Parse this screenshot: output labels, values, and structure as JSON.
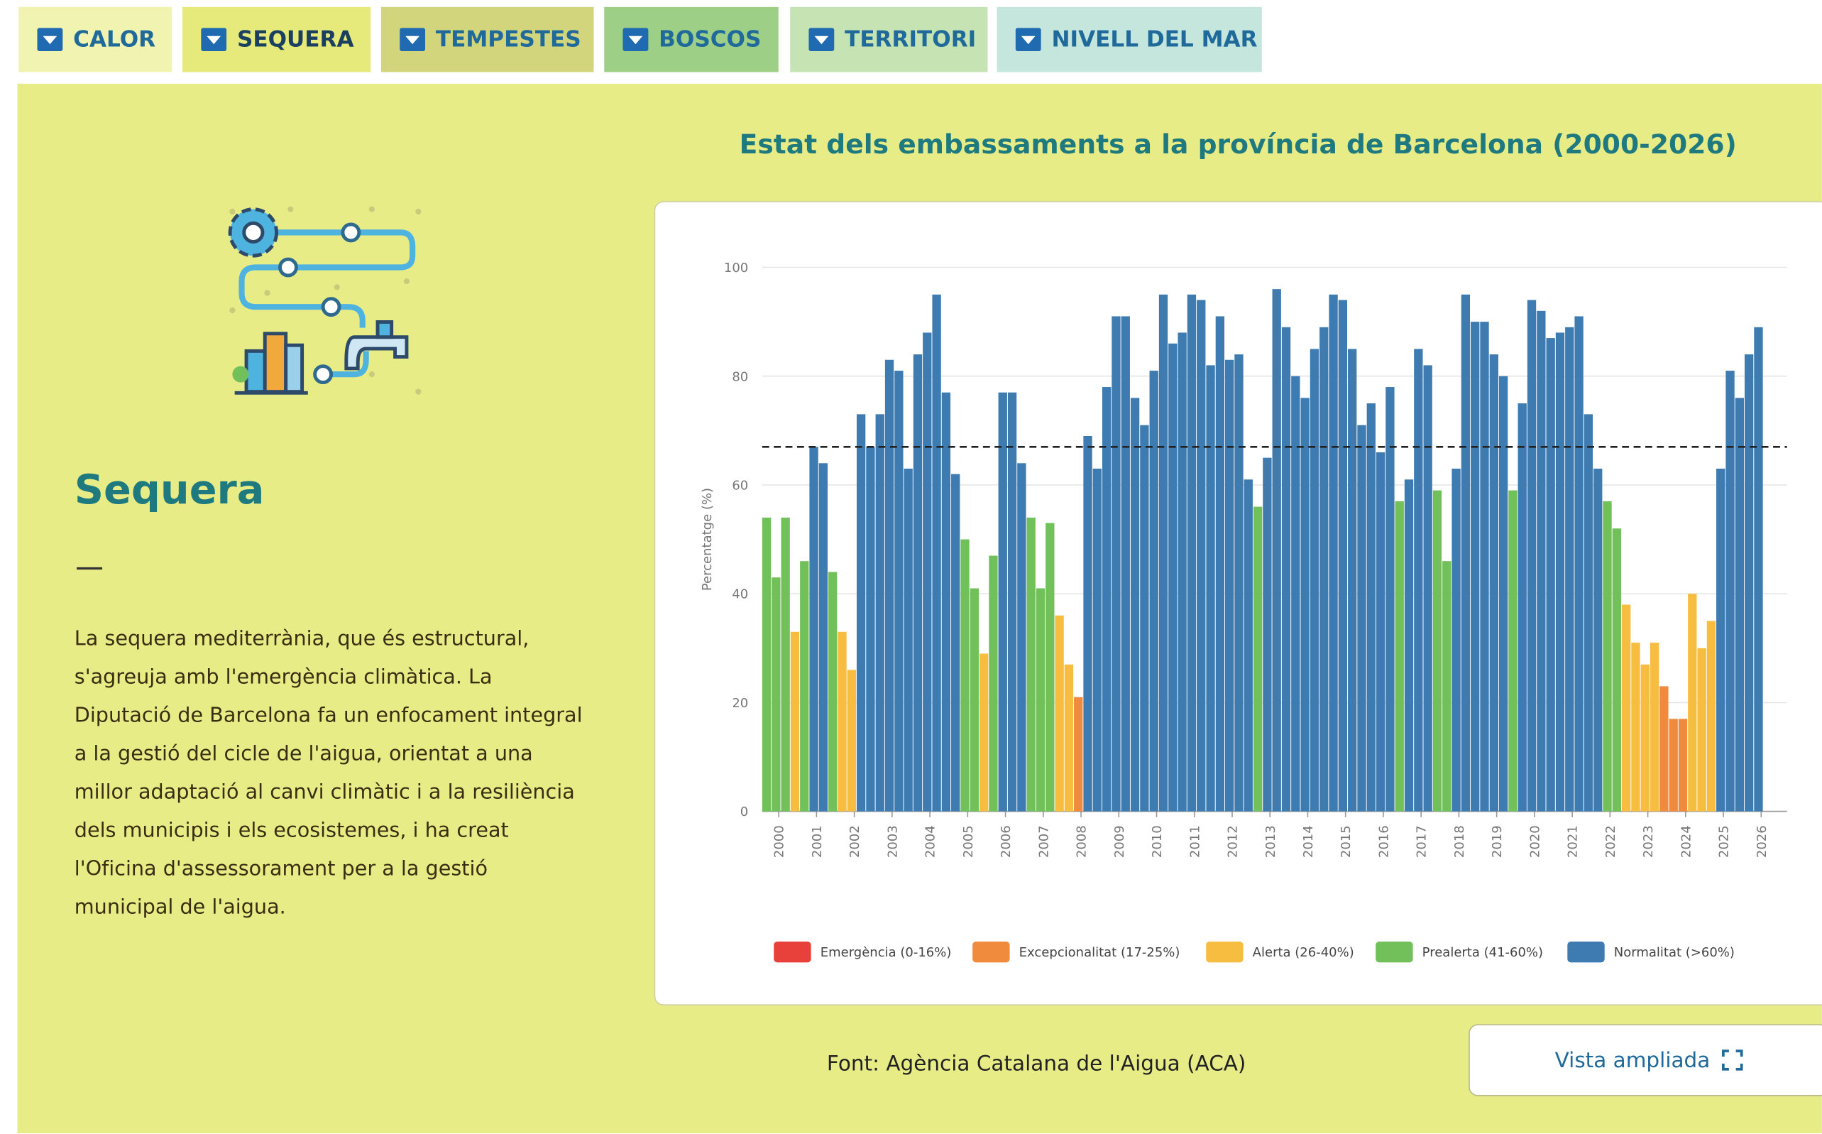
{
  "tabs": [
    "CALOR",
    "SEQUERA",
    "TEMPESTES",
    "BOSCOS",
    "TERRITORI",
    "NIVELL DEL MAR"
  ],
  "heading": "Sequera",
  "body": "La sequera mediterrània, que és estructural, s'agreuja amb l'emergència climàtica. La Diputació de Barcelona fa un enfocament integral a la gestió del cicle de l'aigua, orientat a una millor adaptació al canvi climàtic i a la resiliència dels municipis i els ecosistemes, i ha creat l'Oficina d'assessorament per a la gestió municipal de l'aigua.",
  "source": "Font: Agència Catalana de l'Aigua (ACA)",
  "button": "Vista ampliada",
  "chart_data": {
    "type": "bar",
    "title": "Estat dels embassaments a la província de Barcelona (2000-2026)",
    "y_label": "Percentatge (%)",
    "ylim": [
      0,
      100
    ],
    "yticks": [
      0,
      20,
      40,
      60,
      80,
      100
    ],
    "grid": true,
    "threshold": 67,
    "categories": [
      "2000",
      null,
      null,
      null,
      "2001",
      null,
      null,
      null,
      "2002",
      null,
      null,
      null,
      "2003",
      null,
      null,
      null,
      "2004",
      null,
      null,
      null,
      "2005",
      null,
      null,
      null,
      "2006",
      null,
      null,
      null,
      "2007",
      null,
      null,
      null,
      "2008",
      null,
      null,
      null,
      "2009",
      null,
      null,
      null,
      "2010",
      null,
      null,
      null,
      "2011",
      null,
      null,
      null,
      "2012",
      null,
      null,
      null,
      "2013",
      null,
      null,
      null,
      "2014",
      null,
      null,
      null,
      "2015",
      null,
      null,
      null,
      "2016",
      null,
      null,
      null,
      "2017",
      null,
      null,
      null,
      "2018",
      null,
      null,
      null,
      "2019",
      null,
      null,
      null,
      "2020",
      null,
      null,
      null,
      "2021",
      null,
      null,
      null,
      "2022",
      null,
      null,
      null,
      "2023",
      null,
      null,
      null,
      "2024",
      null,
      null,
      null,
      "2025",
      null,
      null,
      null,
      "2026",
      null
    ],
    "series": [
      {
        "name": "Emergència (0-16%)",
        "color": "#e8413c",
        "values": [
          null,
          null,
          null,
          null,
          null,
          null,
          null,
          null,
          null,
          null,
          null,
          null,
          null,
          null,
          null,
          null,
          null,
          null,
          null,
          null,
          null,
          null,
          null,
          null,
          null,
          null,
          null,
          null,
          null,
          null,
          null,
          null,
          null,
          null,
          null,
          null,
          null,
          null,
          null,
          null,
          null,
          null,
          null,
          null,
          null,
          null,
          null,
          null,
          null,
          null,
          null,
          null,
          null,
          null,
          null,
          null,
          null,
          null,
          null,
          null,
          null,
          null,
          null,
          null,
          null,
          null,
          null,
          null,
          null,
          null,
          null,
          null,
          null,
          null,
          null,
          null,
          null,
          null,
          null,
          null,
          null,
          null,
          null,
          null,
          null,
          null,
          null,
          null,
          null,
          null,
          null,
          null,
          null,
          null,
          null,
          null,
          null,
          null,
          null,
          null,
          null,
          null,
          null,
          null,
          null,
          null
        ]
      },
      {
        "name": "Excepcionalitat (17-25%)",
        "color": "#f08a3c",
        "values": [
          null,
          null,
          null,
          null,
          null,
          null,
          null,
          null,
          null,
          null,
          null,
          null,
          null,
          null,
          null,
          null,
          null,
          null,
          null,
          null,
          null,
          null,
          null,
          null,
          null,
          null,
          null,
          null,
          null,
          null,
          null,
          null,
          null,
          21,
          null,
          null,
          null,
          null,
          null,
          null,
          null,
          null,
          null,
          null,
          null,
          null,
          null,
          null,
          null,
          null,
          null,
          null,
          null,
          null,
          null,
          null,
          null,
          null,
          null,
          null,
          null,
          null,
          null,
          null,
          null,
          null,
          null,
          null,
          null,
          null,
          null,
          null,
          null,
          null,
          null,
          null,
          null,
          null,
          null,
          null,
          null,
          null,
          null,
          null,
          null,
          null,
          null,
          null,
          null,
          null,
          null,
          null,
          null,
          null,
          null,
          23,
          17,
          17,
          null,
          null,
          null,
          null,
          null,
          null,
          null,
          null
        ]
      },
      {
        "name": "Alerta (26-40%)",
        "color": "#f6bd41",
        "values": [
          null,
          null,
          null,
          33,
          null,
          null,
          null,
          null,
          33,
          26,
          null,
          null,
          null,
          null,
          null,
          null,
          null,
          null,
          null,
          null,
          null,
          null,
          null,
          29,
          null,
          null,
          null,
          null,
          null,
          null,
          null,
          36,
          27,
          null,
          null,
          null,
          null,
          null,
          null,
          null,
          null,
          null,
          null,
          null,
          null,
          null,
          null,
          null,
          null,
          null,
          null,
          null,
          null,
          null,
          null,
          null,
          null,
          null,
          null,
          null,
          null,
          null,
          null,
          null,
          null,
          null,
          null,
          null,
          null,
          null,
          null,
          null,
          null,
          null,
          null,
          null,
          null,
          null,
          null,
          null,
          null,
          null,
          null,
          null,
          null,
          null,
          null,
          null,
          null,
          null,
          null,
          38,
          31,
          27,
          31,
          null,
          null,
          null,
          40,
          30,
          35,
          null,
          null,
          null,
          null,
          null
        ]
      },
      {
        "name": "Prealerta (41-60%)",
        "color": "#72c05a",
        "values": [
          54,
          43,
          54,
          null,
          46,
          null,
          null,
          44,
          null,
          null,
          null,
          null,
          null,
          null,
          null,
          null,
          null,
          null,
          null,
          null,
          null,
          50,
          41,
          null,
          47,
          null,
          null,
          null,
          54,
          41,
          53,
          null,
          null,
          null,
          null,
          null,
          null,
          null,
          null,
          null,
          null,
          null,
          null,
          null,
          null,
          null,
          null,
          null,
          null,
          null,
          null,
          null,
          56,
          null,
          null,
          null,
          null,
          null,
          null,
          null,
          null,
          null,
          null,
          null,
          null,
          null,
          null,
          57,
          null,
          null,
          null,
          59,
          46,
          null,
          null,
          null,
          null,
          null,
          null,
          59,
          null,
          null,
          null,
          null,
          null,
          null,
          null,
          null,
          null,
          57,
          52,
          null,
          null,
          null,
          null,
          null,
          null,
          null,
          null,
          null,
          null,
          null,
          null,
          null,
          null,
          null
        ]
      },
      {
        "name": "Normalitat (>60%)",
        "color": "#3e7bb0",
        "values": [
          null,
          null,
          null,
          null,
          null,
          67,
          64,
          null,
          null,
          null,
          73,
          67,
          73,
          83,
          81,
          63,
          84,
          88,
          95,
          77,
          62,
          null,
          null,
          null,
          null,
          77,
          77,
          64,
          null,
          null,
          null,
          null,
          null,
          null,
          69,
          63,
          78,
          91,
          91,
          76,
          71,
          81,
          95,
          86,
          88,
          95,
          94,
          82,
          91,
          83,
          84,
          61,
          null,
          65,
          96,
          89,
          80,
          76,
          85,
          89,
          95,
          94,
          85,
          71,
          75,
          66,
          78,
          null,
          61,
          85,
          82,
          null,
          null,
          63,
          95,
          90,
          90,
          84,
          80,
          null,
          75,
          94,
          92,
          87,
          88,
          89,
          91,
          73,
          63,
          null,
          null,
          null,
          null,
          null,
          null,
          null,
          null,
          null,
          null,
          null,
          null,
          63,
          81,
          76,
          84,
          89
        ]
      }
    ]
  }
}
